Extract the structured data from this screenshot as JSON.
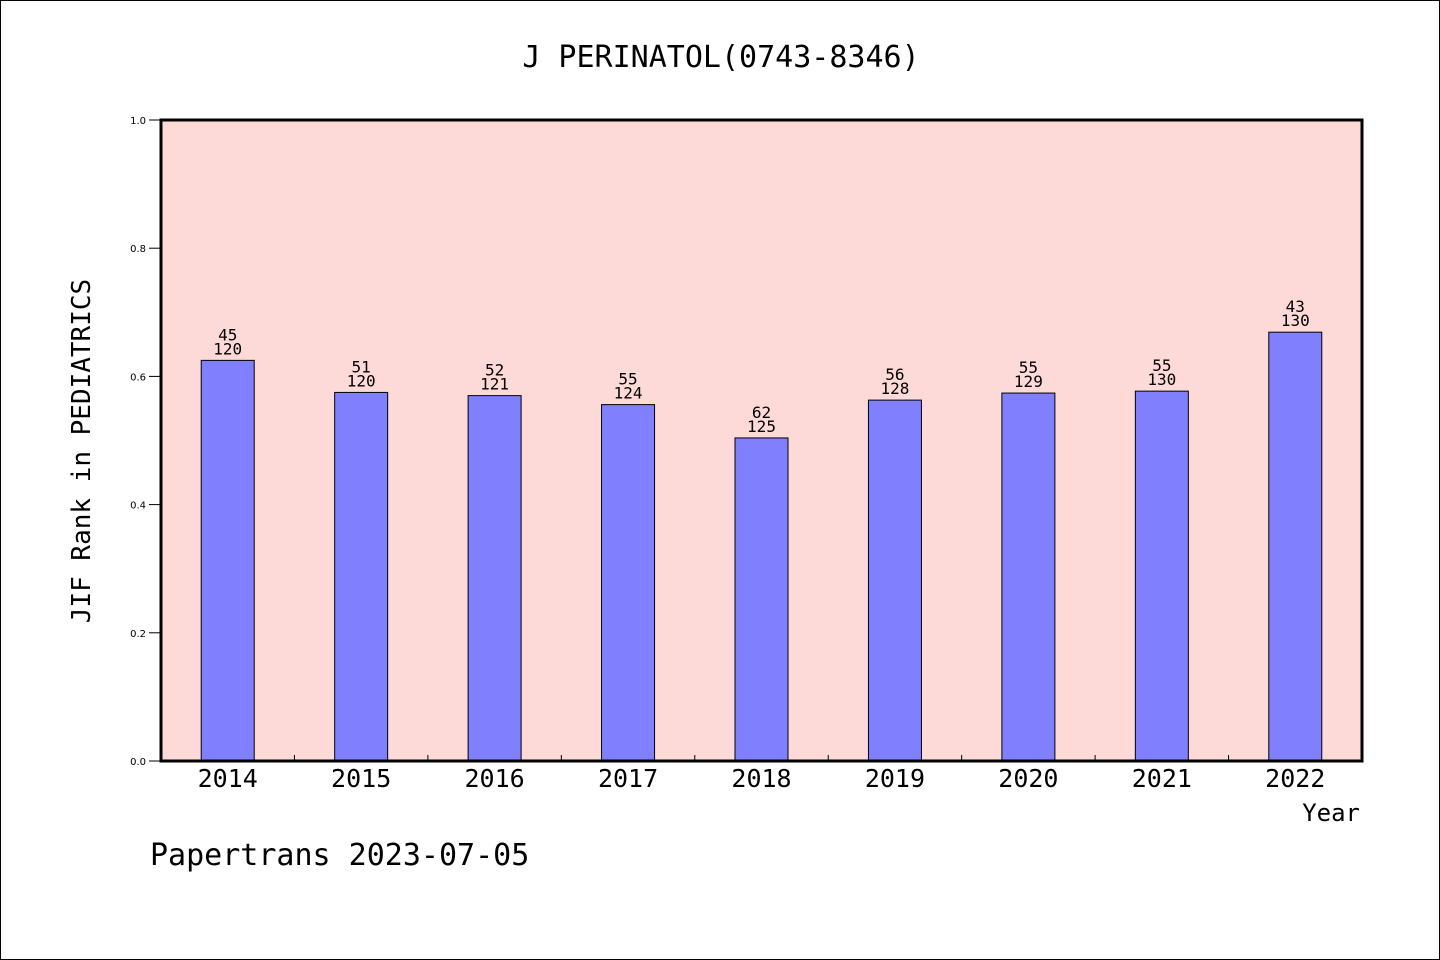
{
  "colors": {
    "plot_background": "#fddad8",
    "bar_fill": "#8080ff",
    "bar_stroke": "#000000",
    "axis": "#000000"
  },
  "footer": "Papertrans 2023-07-05",
  "chart_data": {
    "type": "bar",
    "title": "J PERINATOL(0743-8346)",
    "xlabel": "Year",
    "ylabel": "JIF Rank in PEDIATRICS",
    "ylim": [
      0,
      1.0
    ],
    "yticks": [
      "0.0",
      "0.2",
      "0.4",
      "0.6",
      "0.8",
      "1.0"
    ],
    "grid": false,
    "categories": [
      "2014",
      "2015",
      "2016",
      "2017",
      "2018",
      "2019",
      "2020",
      "2021",
      "2022"
    ],
    "values": [
      0.625,
      0.575,
      0.57,
      0.556,
      0.504,
      0.563,
      0.574,
      0.577,
      0.669
    ],
    "rank": [
      "45",
      "51",
      "52",
      "55",
      "62",
      "56",
      "55",
      "55",
      "43"
    ],
    "total": [
      "120",
      "120",
      "121",
      "124",
      "125",
      "128",
      "129",
      "130",
      "130"
    ]
  }
}
